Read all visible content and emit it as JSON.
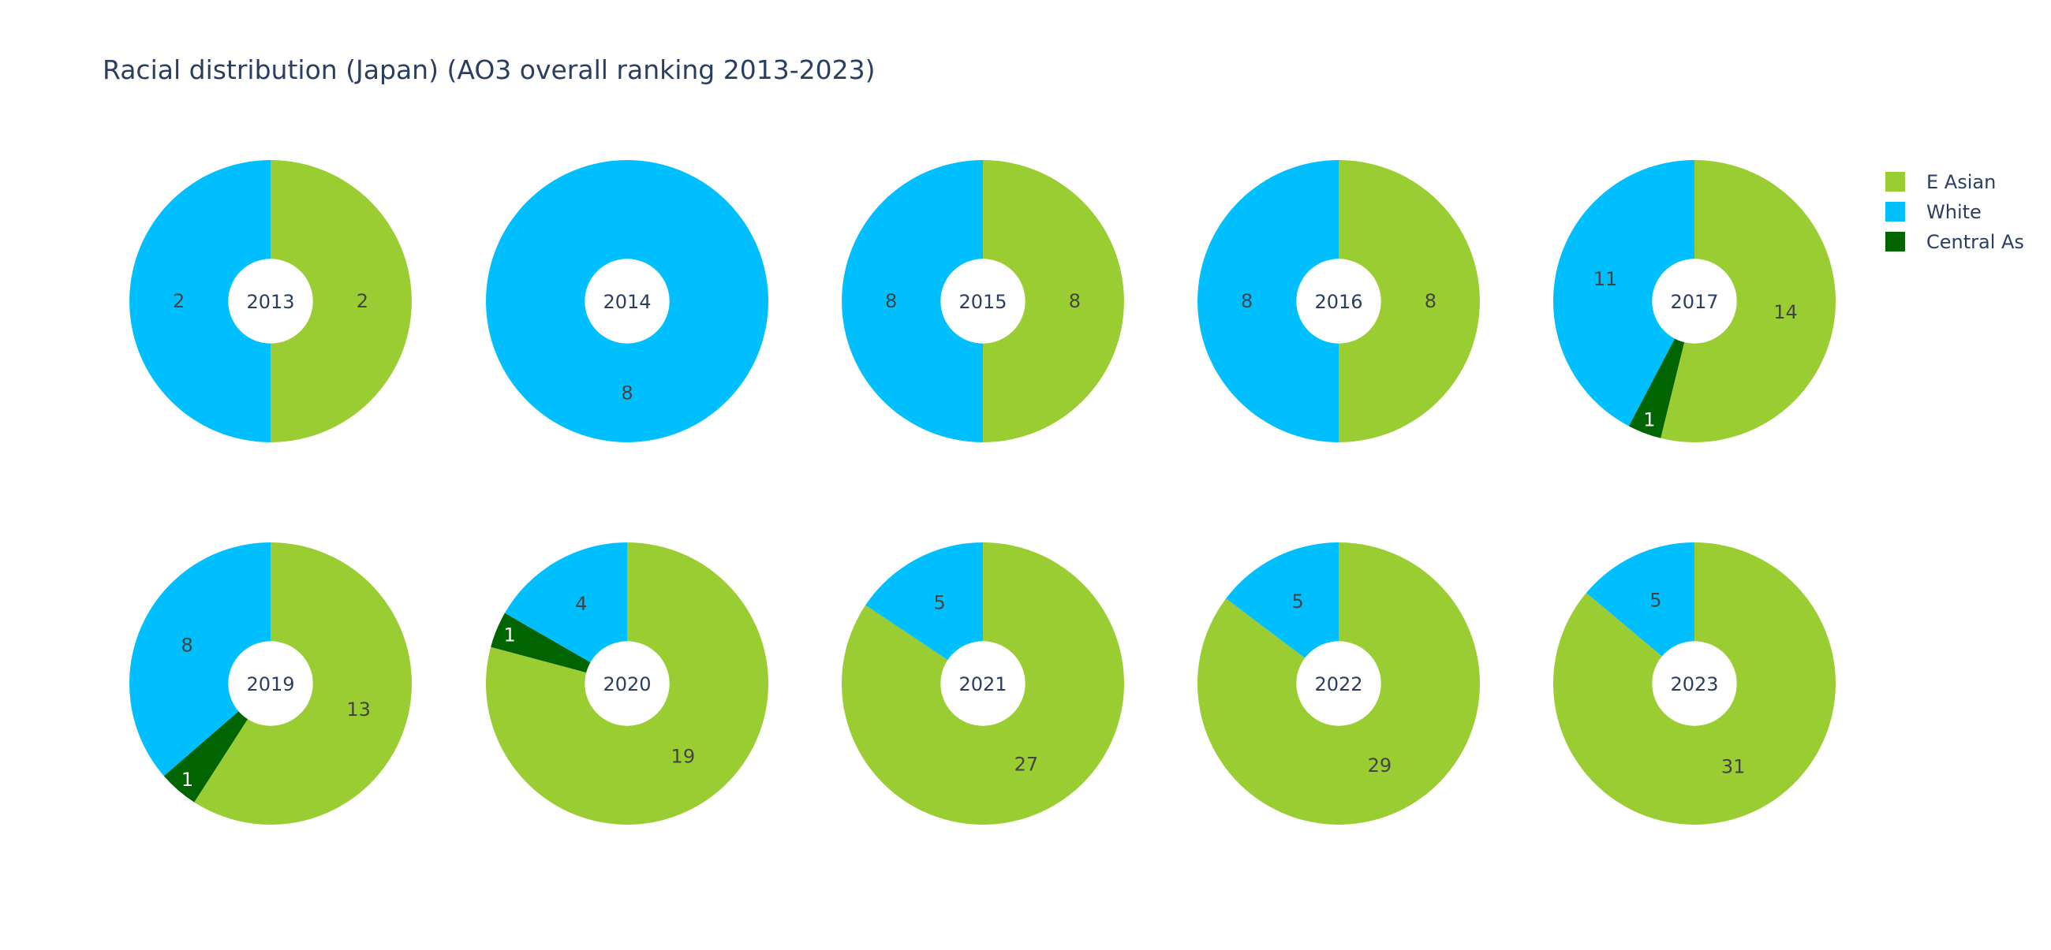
{
  "chart_data": {
    "type": "pie",
    "title": "Racial distribution (Japan) (AO3 overall ranking 2013-2023)",
    "legend": {
      "placement": "top-right",
      "entries": [
        {
          "name": "E Asian",
          "color": "#9ACD32"
        },
        {
          "name": "White",
          "color": "#00BFFF"
        },
        {
          "name": "Central As",
          "color": "#006400"
        }
      ]
    },
    "hole": 0.3,
    "text_colors": {
      "dark": "#444444",
      "light": "#ffffff"
    },
    "charts": [
      {
        "label": "2013",
        "slices": [
          {
            "series": "E Asian",
            "value": 2
          },
          {
            "series": "White",
            "value": 2
          }
        ]
      },
      {
        "label": "2014",
        "slices": [
          {
            "series": "White",
            "value": 8
          }
        ]
      },
      {
        "label": "2015",
        "slices": [
          {
            "series": "E Asian",
            "value": 8
          },
          {
            "series": "White",
            "value": 8
          }
        ]
      },
      {
        "label": "2016",
        "slices": [
          {
            "series": "E Asian",
            "value": 8
          },
          {
            "series": "White",
            "value": 8
          }
        ]
      },
      {
        "label": "2017",
        "slices": [
          {
            "series": "E Asian",
            "value": 14
          },
          {
            "series": "Central As",
            "value": 1
          },
          {
            "series": "White",
            "value": 11
          }
        ]
      },
      {
        "label": "2019",
        "slices": [
          {
            "series": "E Asian",
            "value": 13
          },
          {
            "series": "Central As",
            "value": 1
          },
          {
            "series": "White",
            "value": 8
          }
        ]
      },
      {
        "label": "2020",
        "slices": [
          {
            "series": "E Asian",
            "value": 19
          },
          {
            "series": "Central As",
            "value": 1
          },
          {
            "series": "White",
            "value": 4
          }
        ]
      },
      {
        "label": "2021",
        "slices": [
          {
            "series": "E Asian",
            "value": 27
          },
          {
            "series": "White",
            "value": 5
          }
        ]
      },
      {
        "label": "2022",
        "slices": [
          {
            "series": "E Asian",
            "value": 29
          },
          {
            "series": "White",
            "value": 5
          }
        ]
      },
      {
        "label": "2023",
        "slices": [
          {
            "series": "E Asian",
            "value": 31
          },
          {
            "series": "White",
            "value": 5
          }
        ]
      }
    ]
  }
}
